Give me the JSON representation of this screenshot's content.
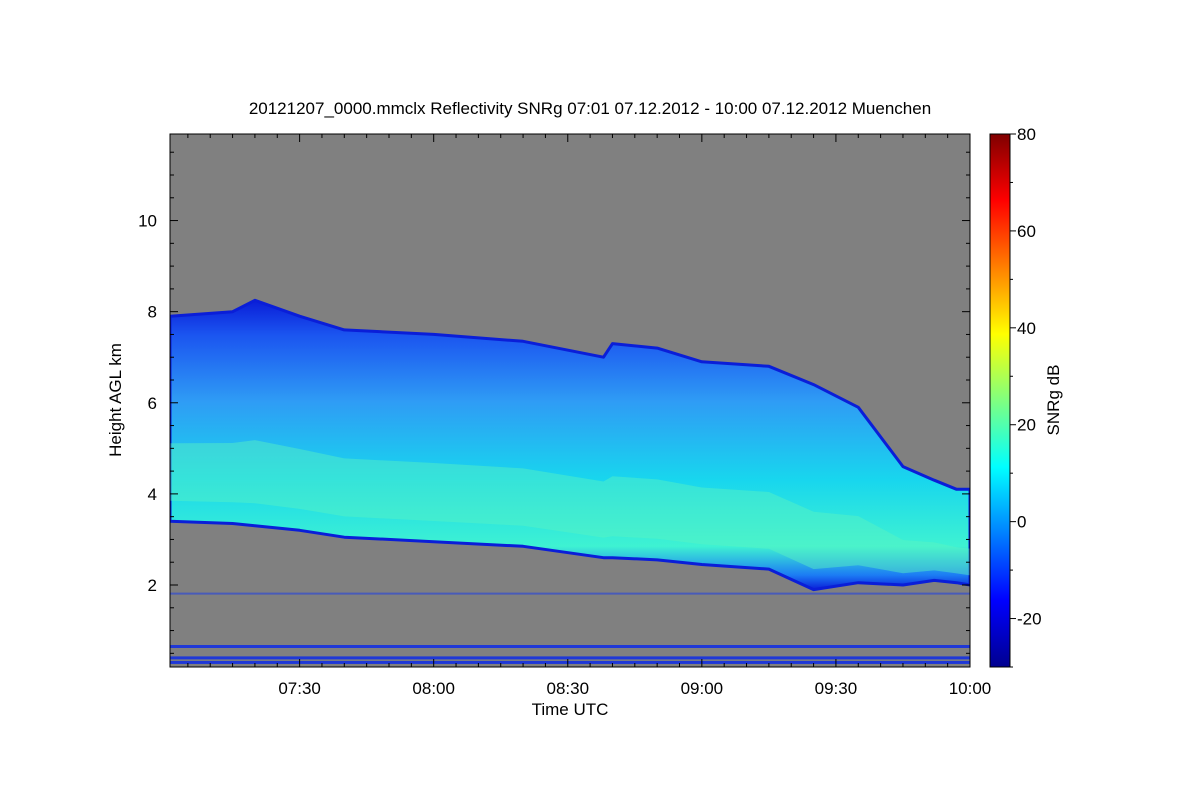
{
  "chart_data": {
    "type": "heatmap",
    "title": "20121207_0000.mmclx Reflectivity SNRg   07:01 07.12.2012 - 10:00 07.12.2012 Muenchen",
    "xlabel": "Time UTC",
    "ylabel": "Height AGL km",
    "x_tick_labels": [
      "07:30",
      "08:00",
      "08:30",
      "09:00",
      "09:30",
      "10:00"
    ],
    "x_tick_values_min": [
      450,
      480,
      510,
      540,
      570,
      600
    ],
    "x_range_min": [
      421,
      600
    ],
    "y_ticks": [
      2,
      4,
      6,
      8,
      10
    ],
    "y_range": [
      0.2,
      11.9
    ],
    "background_color": "#808080",
    "colorbar": {
      "label": "SNRg dB",
      "ticks": [
        -20,
        0,
        20,
        40,
        60,
        80
      ],
      "range": [
        -30,
        80
      ],
      "colormap": "jet"
    },
    "cloud_layer": {
      "time_min": [
        421,
        435,
        440,
        450,
        460,
        480,
        500,
        518,
        520,
        530,
        540,
        555,
        565,
        575,
        585,
        592,
        597,
        600
      ],
      "top_km": [
        7.9,
        8.0,
        8.25,
        7.9,
        7.6,
        7.5,
        7.35,
        7.0,
        7.3,
        7.2,
        6.9,
        6.8,
        6.4,
        5.9,
        4.6,
        4.3,
        4.1,
        4.1
      ],
      "base_km": [
        3.4,
        3.35,
        3.3,
        3.2,
        3.05,
        2.95,
        2.85,
        2.6,
        2.6,
        2.55,
        2.45,
        2.35,
        1.9,
        2.05,
        2.0,
        2.1,
        2.05,
        2.0
      ],
      "core_snr_db": 12
    },
    "noise_layers_km": [
      1.8,
      0.65,
      0.4,
      0.3
    ]
  }
}
